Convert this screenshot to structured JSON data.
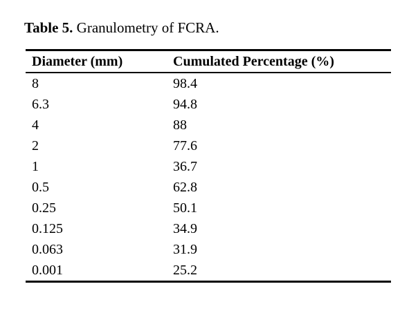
{
  "caption": {
    "label": "Table 5.",
    "text": " Granulometry of FCRA."
  },
  "table": {
    "headers": [
      "Diameter (mm)",
      "Cumulated Percentage (%)"
    ],
    "rows": [
      [
        "8",
        "98.4"
      ],
      [
        "6.3",
        "94.8"
      ],
      [
        "4",
        "88"
      ],
      [
        "2",
        "77.6"
      ],
      [
        "1",
        "36.7"
      ],
      [
        "0.5",
        "62.8"
      ],
      [
        "0.25",
        "50.1"
      ],
      [
        "0.125",
        "34.9"
      ],
      [
        "0.063",
        "31.9"
      ],
      [
        "0.001",
        "25.2"
      ]
    ]
  },
  "colors": {
    "text": "#000000",
    "background": "#ffffff",
    "rule": "#000000"
  },
  "chart_data": {
    "type": "table",
    "title": "Table 5. Granulometry of FCRA.",
    "columns": [
      "Diameter (mm)",
      "Cumulated Percentage (%)"
    ],
    "rows": [
      [
        8,
        98.4
      ],
      [
        6.3,
        94.8
      ],
      [
        4,
        88
      ],
      [
        2,
        77.6
      ],
      [
        1,
        36.7
      ],
      [
        0.5,
        62.8
      ],
      [
        0.25,
        50.1
      ],
      [
        0.125,
        34.9
      ],
      [
        0.063,
        31.9
      ],
      [
        0.001,
        25.2
      ]
    ]
  }
}
